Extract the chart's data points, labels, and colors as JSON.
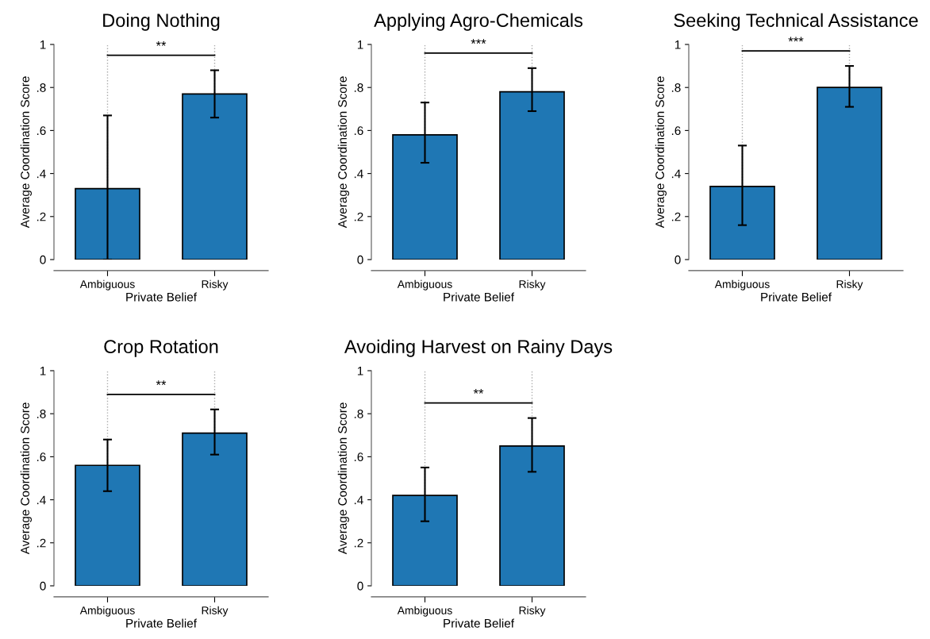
{
  "chart_data": [
    {
      "type": "bar",
      "title": "Doing Nothing",
      "xlabel": "Private Belief",
      "ylabel": "Average Coordination Score",
      "categories": [
        "Ambiguous",
        "Risky"
      ],
      "values": [
        0.33,
        0.77
      ],
      "errors": [
        [
          0.0,
          0.67
        ],
        [
          0.66,
          0.88
        ]
      ],
      "color": "#1f77b4",
      "ylim": [
        0,
        1
      ],
      "yticks": [
        0,
        {
          "value": 0.2,
          "label": ".2"
        },
        {
          "value": 0.4,
          "label": ".4"
        },
        {
          "value": 0.6,
          "label": ".6"
        },
        {
          "value": 0.8,
          "label": ".8"
        },
        1
      ],
      "grid": "x",
      "annotations": [
        "**"
      ]
    },
    {
      "type": "bar",
      "title": "Applying Agro-Chemicals",
      "xlabel": "Private Belief",
      "ylabel": "Average Coordination Score",
      "categories": [
        "Ambiguous",
        "Risky"
      ],
      "values": [
        0.58,
        0.78
      ],
      "errors": [
        [
          0.45,
          0.73
        ],
        [
          0.69,
          0.89
        ]
      ],
      "color": "#1f77b4",
      "ylim": [
        0,
        1
      ],
      "yticks": [
        0,
        {
          "value": 0.2,
          "label": ".2"
        },
        {
          "value": 0.4,
          "label": ".4"
        },
        {
          "value": 0.6,
          "label": ".6"
        },
        {
          "value": 0.8,
          "label": ".8"
        },
        1
      ],
      "grid": "x",
      "annotations": [
        "***"
      ]
    },
    {
      "type": "bar",
      "title": "Seeking Technical Assistance",
      "xlabel": "Private Belief",
      "ylabel": "Average Coordination Score",
      "categories": [
        "Ambiguous",
        "Risky"
      ],
      "values": [
        0.34,
        0.8
      ],
      "errors": [
        [
          0.16,
          0.53
        ],
        [
          0.71,
          0.9
        ]
      ],
      "color": "#1f77b4",
      "ylim": [
        0,
        1
      ],
      "yticks": [
        0,
        {
          "value": 0.2,
          "label": ".2"
        },
        {
          "value": 0.4,
          "label": ".4"
        },
        {
          "value": 0.6,
          "label": ".6"
        },
        {
          "value": 0.8,
          "label": ".8"
        },
        1
      ],
      "grid": "x",
      "annotations": [
        "***"
      ]
    },
    {
      "type": "bar",
      "title": "Crop Rotation",
      "xlabel": "Private Belief",
      "ylabel": "Average Coordination Score",
      "categories": [
        "Ambiguous",
        "Risky"
      ],
      "values": [
        0.56,
        0.71
      ],
      "errors": [
        [
          0.44,
          0.68
        ],
        [
          0.61,
          0.82
        ]
      ],
      "color": "#1f77b4",
      "ylim": [
        0,
        1
      ],
      "yticks": [
        0,
        {
          "value": 0.2,
          "label": ".2"
        },
        {
          "value": 0.4,
          "label": ".4"
        },
        {
          "value": 0.6,
          "label": ".6"
        },
        {
          "value": 0.8,
          "label": ".8"
        },
        1
      ],
      "grid": "x",
      "annotations": [
        "**"
      ]
    },
    {
      "type": "bar",
      "title": "Avoiding Harvest on Rainy Days",
      "xlabel": "Private Belief",
      "ylabel": "Average Coordination Score",
      "categories": [
        "Ambiguous",
        "Risky"
      ],
      "values": [
        0.42,
        0.65
      ],
      "errors": [
        [
          0.3,
          0.55
        ],
        [
          0.53,
          0.78
        ]
      ],
      "color": "#1f77b4",
      "ylim": [
        0,
        1
      ],
      "yticks": [
        0,
        {
          "value": 0.2,
          "label": ".2"
        },
        {
          "value": 0.4,
          "label": ".4"
        },
        {
          "value": 0.6,
          "label": ".6"
        },
        {
          "value": 0.8,
          "label": ".8"
        },
        1
      ],
      "grid": "x",
      "annotations": [
        "**"
      ]
    }
  ]
}
